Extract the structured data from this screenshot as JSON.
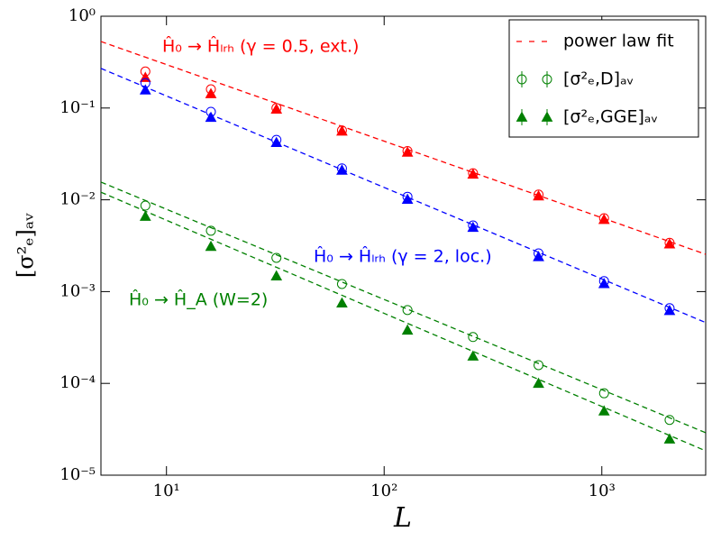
{
  "chart_data": {
    "type": "scatter",
    "x_label": "L",
    "y_label": "[σ²ₑ]ₐᵥ",
    "log_x": true,
    "log_y": true,
    "xlim": [
      5,
      3000
    ],
    "ylim": [
      1e-05,
      1
    ],
    "xticks": [
      {
        "value": 10,
        "label": "10¹"
      },
      {
        "value": 100,
        "label": "10²"
      },
      {
        "value": 1000,
        "label": "10³"
      }
    ],
    "yticks": [
      {
        "value": 1e-05,
        "label": "10⁻⁵"
      },
      {
        "value": 0.0001,
        "label": "10⁻⁴"
      },
      {
        "value": 0.001,
        "label": "10⁻³"
      },
      {
        "value": 0.01,
        "label": "10⁻²"
      },
      {
        "value": 0.1,
        "label": "10⁻¹"
      },
      {
        "value": 1,
        "label": "10⁰"
      }
    ],
    "x": [
      8,
      16,
      32,
      64,
      128,
      256,
      512,
      1024,
      2048
    ],
    "series": [
      {
        "color": "#ff0000",
        "marker": "open",
        "values": [
          0.25,
          0.16,
          0.1,
          0.057,
          0.034,
          0.0195,
          0.0114,
          0.0063,
          0.0034
        ]
      },
      {
        "color": "#ff0000",
        "marker": "filled",
        "values": [
          0.215,
          0.143,
          0.097,
          0.056,
          0.033,
          0.019,
          0.011,
          0.0061,
          0.0033
        ]
      },
      {
        "color": "#0000ff",
        "marker": "open",
        "values": [
          0.187,
          0.091,
          0.045,
          0.022,
          0.0108,
          0.00526,
          0.00261,
          0.0013,
          0.00066
        ]
      },
      {
        "color": "#0000ff",
        "marker": "filled",
        "values": [
          0.157,
          0.079,
          0.042,
          0.021,
          0.0101,
          0.005,
          0.0024,
          0.00122,
          0.00062
        ]
      },
      {
        "color": "#008000",
        "marker": "open",
        "values": [
          0.00865,
          0.0046,
          0.00233,
          0.00121,
          0.00063,
          0.00032,
          0.000158,
          7.8e-05,
          4e-05
        ]
      },
      {
        "color": "#008000",
        "marker": "filled",
        "values": [
          0.0066,
          0.0031,
          0.00148,
          0.00075,
          0.00038,
          0.000198,
          0.0001,
          5e-05,
          2.47e-05
        ]
      }
    ],
    "fits": [
      {
        "color": "#ff0000",
        "x": [
          5,
          3000
        ],
        "values": [
          0.53,
          0.00255
        ]
      },
      {
        "color": "#0000ff",
        "x": [
          5,
          3000
        ],
        "values": [
          0.27,
          0.00046
        ]
      },
      {
        "color": "#008000",
        "x": [
          5,
          3000
        ],
        "values": [
          0.0156,
          2.9e-05
        ]
      },
      {
        "color": "#008000",
        "x": [
          5,
          3000
        ],
        "values": [
          0.0121,
          1.84e-05
        ]
      }
    ],
    "legend_corner": "upper right",
    "legend": [
      {
        "label": "power law fit",
        "style": "dashed",
        "color": "#ff0000"
      },
      {
        "label": "[σ²ₑ,D]ₐᵥ",
        "style": "open",
        "color": "#008000"
      },
      {
        "label": "[σ²ₑ,GGE]ₐᵥ",
        "style": "filled",
        "color": "#008000"
      }
    ],
    "annotations": [
      {
        "text": "Ĥ₀ → Ĥₗᵣₕ (γ = 0.5, ext.)",
        "color": "#ff0000"
      },
      {
        "text": "Ĥ₀ → Ĥₗᵣₕ (γ = 2, loc.)",
        "color": "#0000ff"
      },
      {
        "text": "Ĥ₀ → Ĥ_A (W=2)",
        "color": "#008000"
      }
    ]
  }
}
